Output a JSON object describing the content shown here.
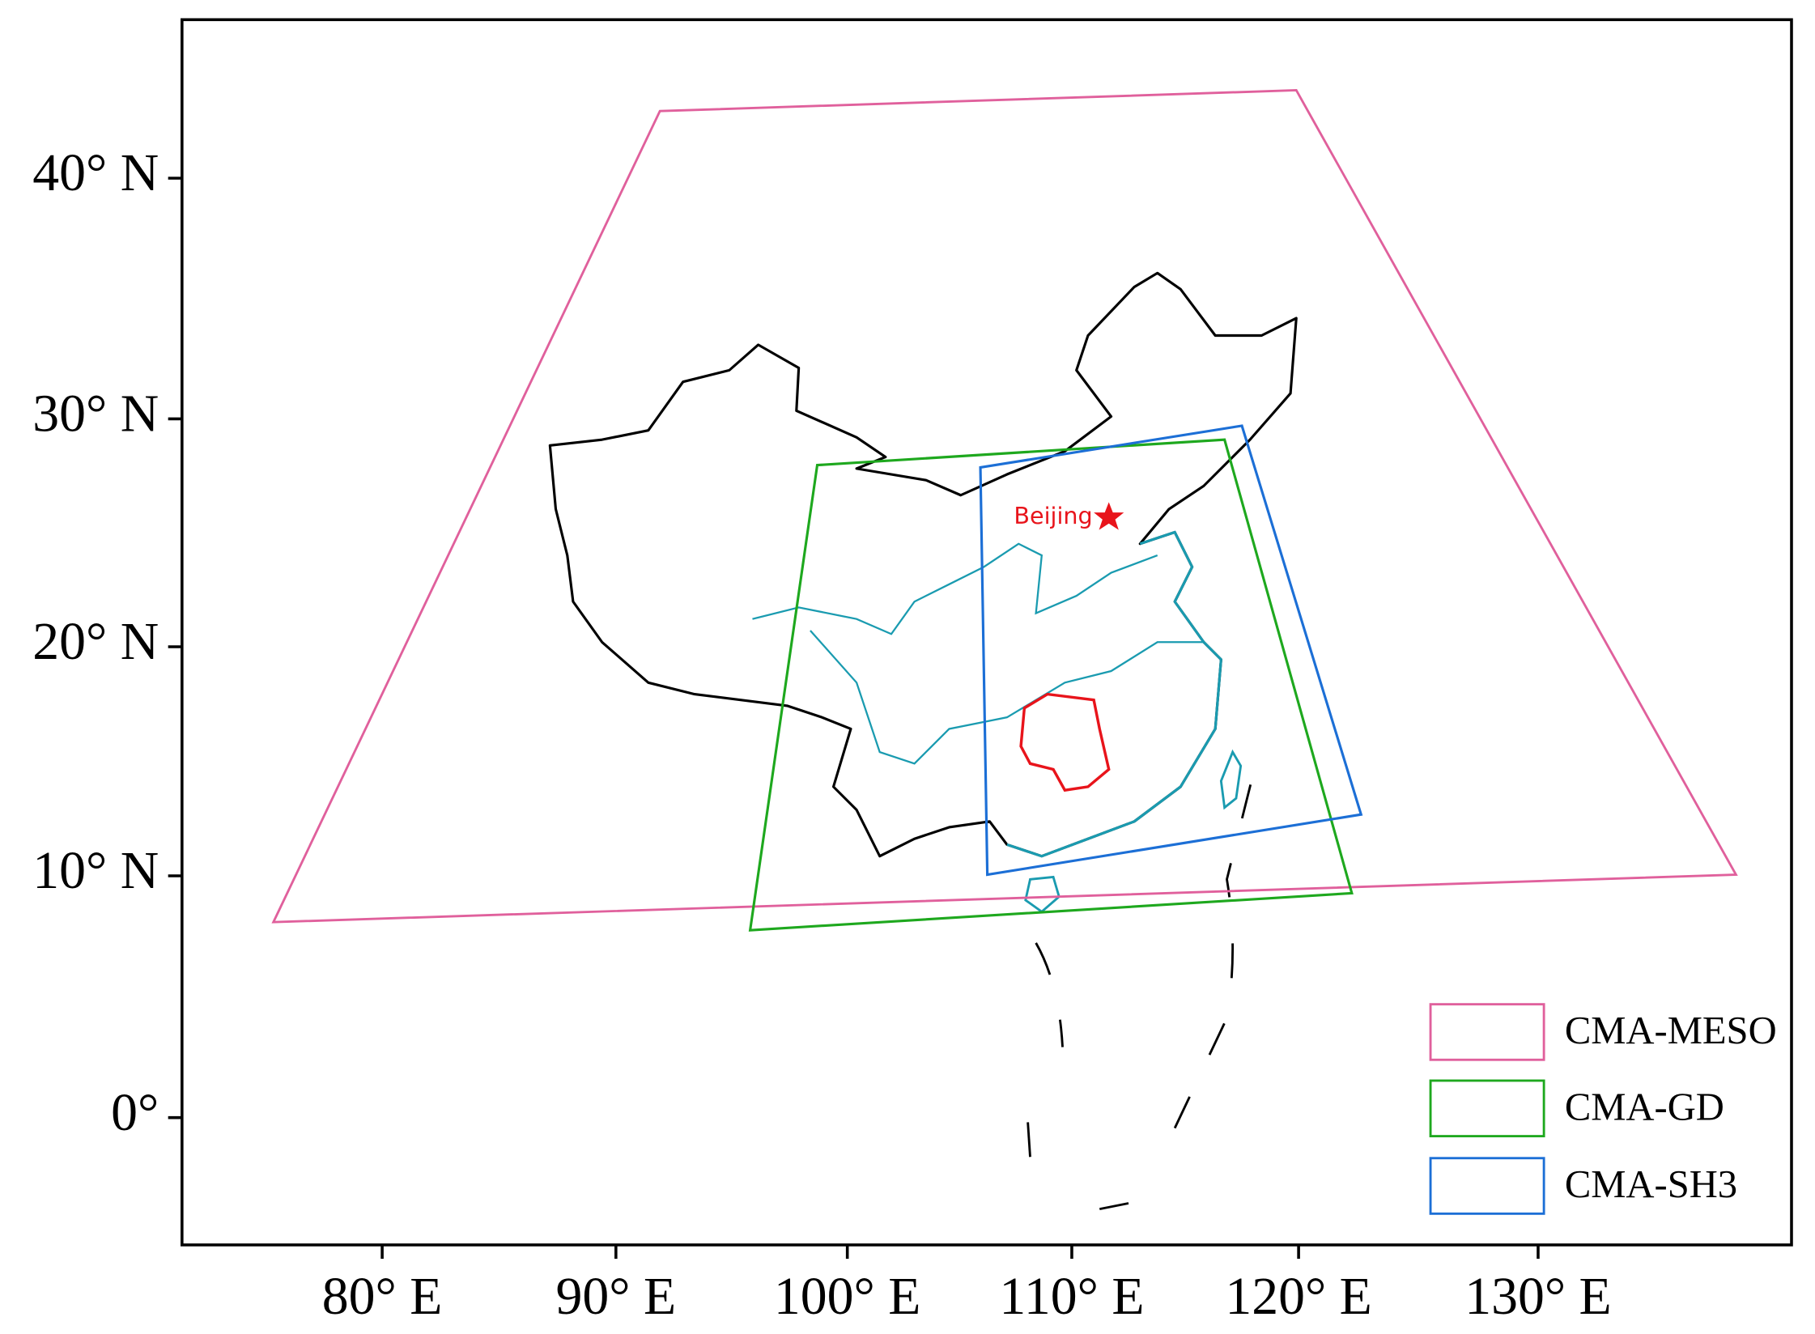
{
  "map": {
    "x_labels": [
      "80° E",
      "90° E",
      "100° E",
      "110° E",
      "120° E",
      "130° E"
    ],
    "y_labels": [
      "40° N",
      "30° N",
      "20° N",
      "10° N",
      "0°"
    ],
    "annotation": "Beijing",
    "legend": [
      "CMA-MESO",
      "CMA-GD",
      "CMA-SH3"
    ]
  }
}
